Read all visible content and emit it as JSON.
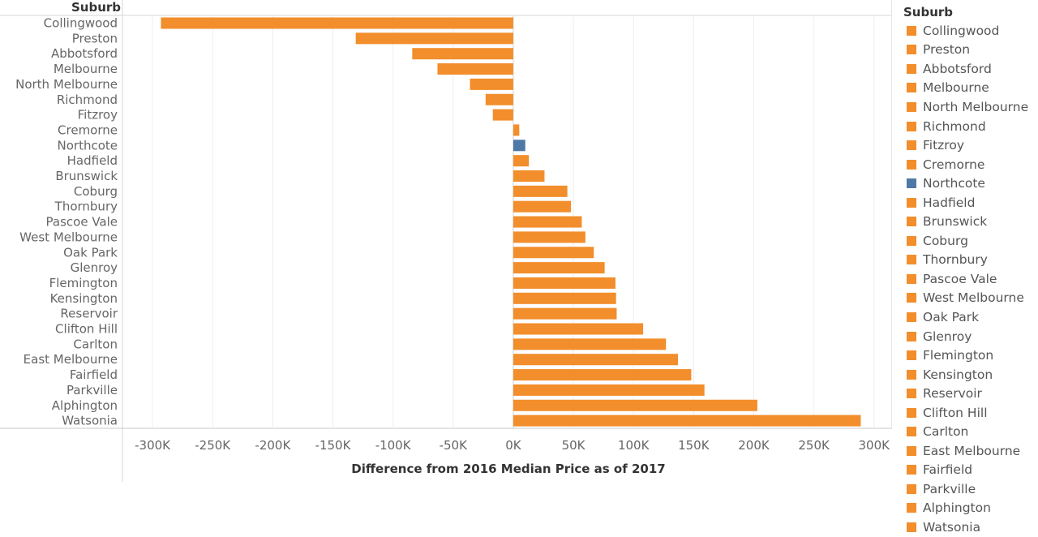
{
  "chart_data": {
    "type": "bar",
    "orientation": "horizontal",
    "row_header": "Suburb",
    "xlabel": "Difference from 2016 Median Price as of 2017",
    "xlim": [
      -325000,
      315000
    ],
    "x_ticks": [
      -300000,
      -250000,
      -200000,
      -150000,
      -100000,
      -50000,
      0,
      50000,
      100000,
      150000,
      200000,
      250000,
      300000
    ],
    "x_tick_labels": [
      "-300K",
      "-250K",
      "-200K",
      "-150K",
      "-100K",
      "-50K",
      "0K",
      "50K",
      "100K",
      "150K",
      "200K",
      "250K",
      "300K"
    ],
    "grid": true,
    "categories": [
      "Collingwood",
      "Preston",
      "Abbotsford",
      "Melbourne",
      "North Melbourne",
      "Richmond",
      "Fitzroy",
      "Cremorne",
      "Northcote",
      "Hadfield",
      "Brunswick",
      "Coburg",
      "Thornbury",
      "Pascoe Vale",
      "West Melbourne",
      "Oak Park",
      "Glenroy",
      "Flemington",
      "Kensington",
      "Reservoir",
      "Clifton Hill",
      "Carlton",
      "East Melbourne",
      "Fairfield",
      "Parkville",
      "Alphington",
      "Watsonia"
    ],
    "values": [
      -293000,
      -131000,
      -84000,
      -63000,
      -36000,
      -23000,
      -17000,
      5000,
      10000,
      13000,
      26000,
      45000,
      48000,
      57000,
      60000,
      67000,
      76000,
      85000,
      85500,
      86000,
      108000,
      127000,
      137000,
      148000,
      159000,
      203000,
      289000
    ],
    "colors": [
      "#f28e2b",
      "#f28e2b",
      "#f28e2b",
      "#f28e2b",
      "#f28e2b",
      "#f28e2b",
      "#f28e2b",
      "#f28e2b",
      "#4e79a7",
      "#f28e2b",
      "#f28e2b",
      "#f28e2b",
      "#f28e2b",
      "#f28e2b",
      "#f28e2b",
      "#f28e2b",
      "#f28e2b",
      "#f28e2b",
      "#f28e2b",
      "#f28e2b",
      "#f28e2b",
      "#f28e2b",
      "#f28e2b",
      "#f28e2b",
      "#f28e2b",
      "#f28e2b",
      "#f28e2b"
    ],
    "legend": {
      "title": "Suburb",
      "placement": "right"
    }
  }
}
